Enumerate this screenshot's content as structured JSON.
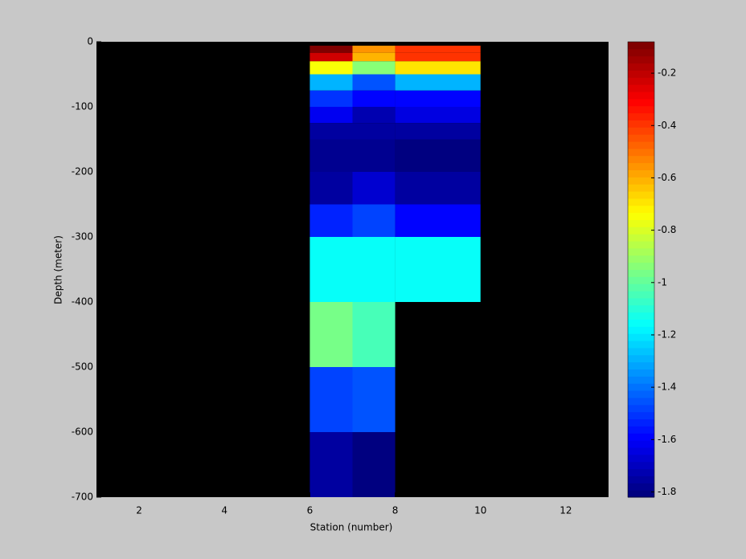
{
  "chart_data": {
    "type": "heatmap",
    "xlabel": "Station (number)",
    "ylabel": "Depth (meter)",
    "colormap": "jet",
    "background": "#000000",
    "x_edges": [
      6,
      7,
      8,
      10
    ],
    "y_edges": [
      -6,
      -17,
      -30,
      -50,
      -75,
      -100,
      -125,
      -150,
      -200,
      -250,
      -300,
      -400,
      -500,
      -600,
      -700
    ],
    "values": [
      [
        -0.1,
        -0.55,
        -0.38
      ],
      [
        -0.22,
        -0.6,
        -0.4
      ],
      [
        -0.75,
        -0.95,
        -0.7
      ],
      [
        -1.3,
        -1.45,
        -1.3
      ],
      [
        -1.5,
        -1.58,
        -1.58
      ],
      [
        -1.62,
        -1.72,
        -1.65
      ],
      [
        -1.74,
        -1.75,
        -1.76
      ],
      [
        -1.79,
        -1.77,
        -1.81
      ],
      [
        -1.76,
        -1.66,
        -1.74
      ],
      [
        -1.54,
        -1.47,
        -1.59
      ],
      [
        -1.15,
        -1.15,
        -1.15
      ],
      [
        -0.97,
        -1.05,
        null
      ],
      [
        -1.47,
        -1.45,
        null
      ],
      [
        -1.74,
        -1.8,
        null
      ]
    ],
    "xlim": [
      1,
      13
    ],
    "xticks": [
      2,
      4,
      6,
      8,
      10,
      12
    ],
    "ylim": [
      -700,
      0
    ],
    "yticks": [
      0,
      -100,
      -200,
      -300,
      -400,
      -500,
      -600,
      -700
    ],
    "clim": [
      -1.82,
      -0.08
    ],
    "cticks": [
      -0.2,
      -0.4,
      -0.6,
      -0.8,
      -1,
      -1.2,
      -1.4,
      -1.6,
      -1.8
    ]
  }
}
